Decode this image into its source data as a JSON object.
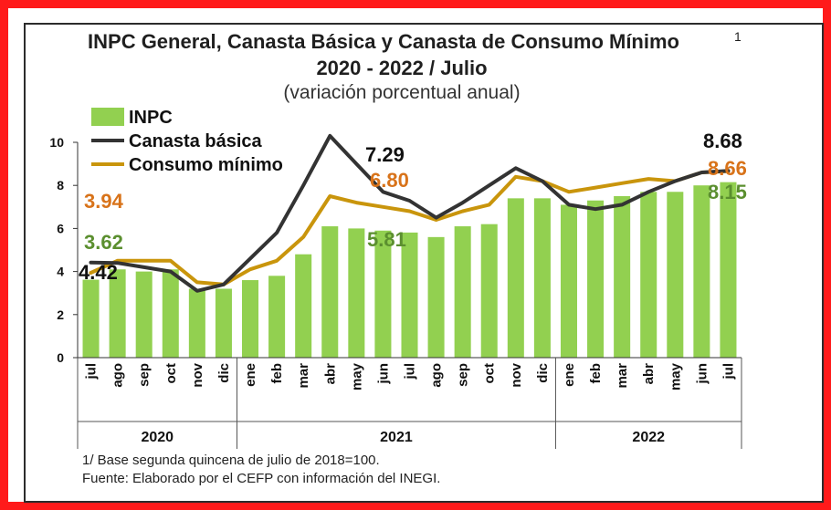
{
  "title": "INPC General, Canasta Básica  y Canasta de Consumo Mínimo",
  "title_sup": "1",
  "subtitle": "2020 - 2022 / Julio",
  "subtitle2": "(variación porcentual anual)",
  "footnotes": [
    "1/ Base segunda quincena de julio de 2018=100.",
    "Fuente: Elaborado por el CEFP con información del INEGI."
  ],
  "colors": {
    "frame": "#ff1a1a",
    "bars": "#92d050",
    "canasta": "#333333",
    "consumo": "#c9950c",
    "ann_orange": "#d8731a",
    "ann_green": "#5b8f2f",
    "ann_black": "#111111"
  },
  "chart_data": {
    "type": "bar",
    "categories": [
      "jul",
      "ago",
      "sep",
      "oct",
      "nov",
      "dic",
      "ene",
      "feb",
      "mar",
      "abr",
      "may",
      "jun",
      "jul",
      "ago",
      "sep",
      "oct",
      "nov",
      "dic",
      "ene",
      "feb",
      "mar",
      "abr",
      "may",
      "jun",
      "jul"
    ],
    "groups": [
      {
        "label": "2020",
        "count": 6
      },
      {
        "label": "2021",
        "count": 12
      },
      {
        "label": "2022",
        "count": 7
      }
    ],
    "ylim": [
      0,
      10
    ],
    "yticks": [
      0,
      2,
      4,
      6,
      8,
      10
    ],
    "legend_position": "top-left",
    "series": [
      {
        "name": "INPC",
        "kind": "bar",
        "values": [
          3.62,
          4.1,
          4.0,
          4.1,
          3.2,
          3.2,
          3.6,
          3.8,
          4.8,
          6.1,
          6.0,
          5.9,
          5.81,
          5.6,
          6.1,
          6.2,
          7.4,
          7.4,
          7.1,
          7.3,
          7.5,
          7.7,
          7.7,
          8.0,
          8.15
        ]
      },
      {
        "name": "Canasta básica",
        "kind": "line",
        "values": [
          4.42,
          4.4,
          4.2,
          4.0,
          3.1,
          3.4,
          4.6,
          5.8,
          8.0,
          10.3,
          9.0,
          7.7,
          7.29,
          6.5,
          7.2,
          8.0,
          8.8,
          8.2,
          7.1,
          6.9,
          7.1,
          7.7,
          8.2,
          8.6,
          8.68
        ]
      },
      {
        "name": "Consumo mínimo",
        "kind": "line",
        "values": [
          3.94,
          4.5,
          4.5,
          4.5,
          3.5,
          3.4,
          4.1,
          4.5,
          5.6,
          7.5,
          7.2,
          7.0,
          6.8,
          6.4,
          6.8,
          7.1,
          8.4,
          8.2,
          7.7,
          7.9,
          8.1,
          8.3,
          8.2,
          8.6,
          8.66
        ]
      }
    ],
    "annotations": [
      {
        "text": "3.94",
        "series": "Consumo mínimo",
        "index": 0,
        "color": "ann_orange"
      },
      {
        "text": "3.62",
        "series": "INPC",
        "index": 0,
        "color": "ann_green"
      },
      {
        "text": "4.42",
        "series": "Canasta básica",
        "index": 0,
        "color": "ann_black"
      },
      {
        "text": "7.29",
        "series": "Canasta básica",
        "index": 12,
        "color": "ann_black"
      },
      {
        "text": "6.80",
        "series": "Consumo mínimo",
        "index": 12,
        "color": "ann_orange"
      },
      {
        "text": "5.81",
        "series": "INPC",
        "index": 12,
        "color": "ann_green"
      },
      {
        "text": "8.68",
        "series": "Canasta básica",
        "index": 24,
        "color": "ann_black"
      },
      {
        "text": "8.66",
        "series": "Consumo mínimo",
        "index": 24,
        "color": "ann_orange"
      },
      {
        "text": "8.15",
        "series": "INPC",
        "index": 24,
        "color": "ann_green"
      }
    ]
  }
}
